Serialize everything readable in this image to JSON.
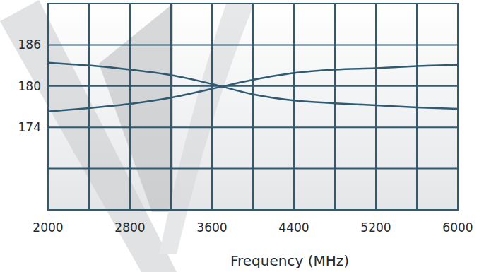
{
  "chart_data": {
    "type": "line",
    "x_label": "Frequency (MHz)",
    "x": [
      2000,
      2400,
      2800,
      3200,
      3600,
      4000,
      4400,
      4800,
      5200,
      5600,
      6000
    ],
    "series": [
      {
        "color": "#2e5a72",
        "values": [
          183.4,
          183.0,
          182.4,
          181.6,
          180.3,
          178.8,
          177.9,
          177.5,
          177.2,
          176.9,
          176.7
        ]
      },
      {
        "color": "#2e5a72",
        "values": [
          176.3,
          176.8,
          177.4,
          178.3,
          179.6,
          180.9,
          181.9,
          182.4,
          182.6,
          182.9,
          183.1
        ]
      }
    ],
    "xlim": [
      2000,
      6000
    ],
    "xticks": [
      2000,
      2800,
      3600,
      4400,
      5200,
      6000
    ],
    "ylim": [
      162,
      192
    ],
    "yticks": [
      174,
      180,
      186
    ],
    "grid": true
  }
}
